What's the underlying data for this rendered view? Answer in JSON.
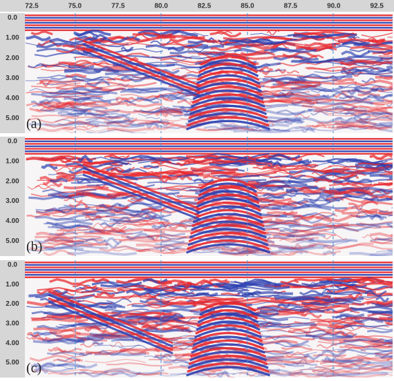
{
  "x_axis": {
    "ticks": [
      "72.5",
      "75.0",
      "77.5",
      "80.0",
      "82.5",
      "85.0",
      "87.5",
      "90.0",
      "92.5"
    ]
  },
  "panels": [
    {
      "label": "(a)",
      "y_ticks": [
        "0.0",
        "1.00",
        "2.00",
        "3.00",
        "4.00",
        "5.00"
      ]
    },
    {
      "label": "(b)",
      "y_ticks": [
        "0.0",
        "1.00",
        "2.00",
        "3.00",
        "4.00",
        "5.00"
      ]
    },
    {
      "label": "(c)",
      "y_ticks": [
        "0.0",
        "1.00",
        "2.00",
        "3.00",
        "4.00",
        "5.00"
      ]
    }
  ]
}
